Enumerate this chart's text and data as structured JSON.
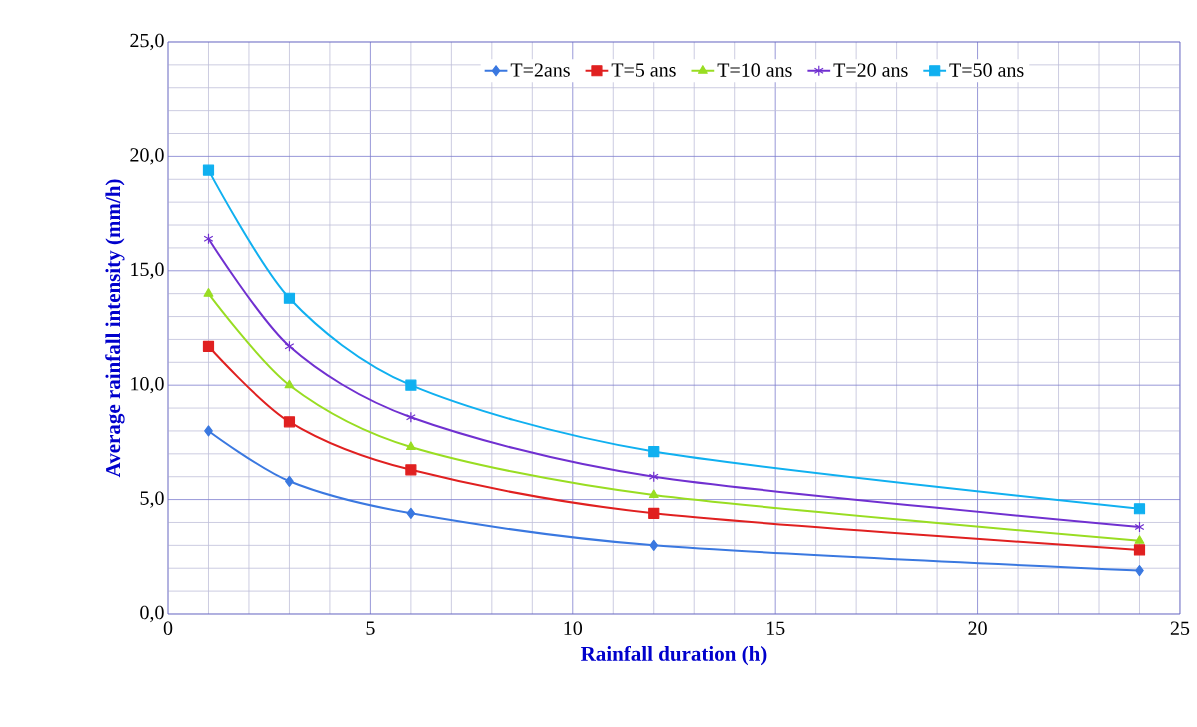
{
  "chart_data": {
    "type": "line",
    "xlabel": "Rainfall duration (h)",
    "ylabel": "Average rainfall intensity (mm/h)",
    "x": [
      1,
      3,
      6,
      12,
      24
    ],
    "series": [
      {
        "name": "T=2ans",
        "color": "#3a78e0",
        "marker": "diamond",
        "values": [
          8.0,
          5.8,
          4.4,
          3.0,
          1.9
        ]
      },
      {
        "name": "T=5 ans",
        "color": "#e02020",
        "marker": "square",
        "values": [
          11.7,
          8.4,
          6.3,
          4.4,
          2.8
        ]
      },
      {
        "name": "T=10 ans",
        "color": "#99dd22",
        "marker": "triangle",
        "values": [
          14.0,
          10.0,
          7.3,
          5.2,
          3.2
        ]
      },
      {
        "name": "T=20 ans",
        "color": "#7030d0",
        "marker": "cross",
        "values": [
          16.4,
          11.7,
          8.6,
          6.0,
          3.8
        ]
      },
      {
        "name": "T=50 ans",
        "color": "#10b0f0",
        "marker": "square",
        "values": [
          19.4,
          13.8,
          10.0,
          7.1,
          4.6
        ]
      }
    ],
    "xlim": [
      0,
      25
    ],
    "xticks": [
      0,
      5,
      10,
      15,
      20,
      25
    ],
    "ylim": [
      0,
      25
    ],
    "yticks": [
      {
        "value": 0,
        "label": "0,0"
      },
      {
        "value": 5,
        "label": "5,0"
      },
      {
        "value": 10,
        "label": "10,0"
      },
      {
        "value": 15,
        "label": "15,0"
      },
      {
        "value": 20,
        "label": "20,0"
      },
      {
        "value": 25,
        "label": "25,0"
      }
    ],
    "grid": true,
    "legend": "top",
    "line_style": "solid"
  }
}
